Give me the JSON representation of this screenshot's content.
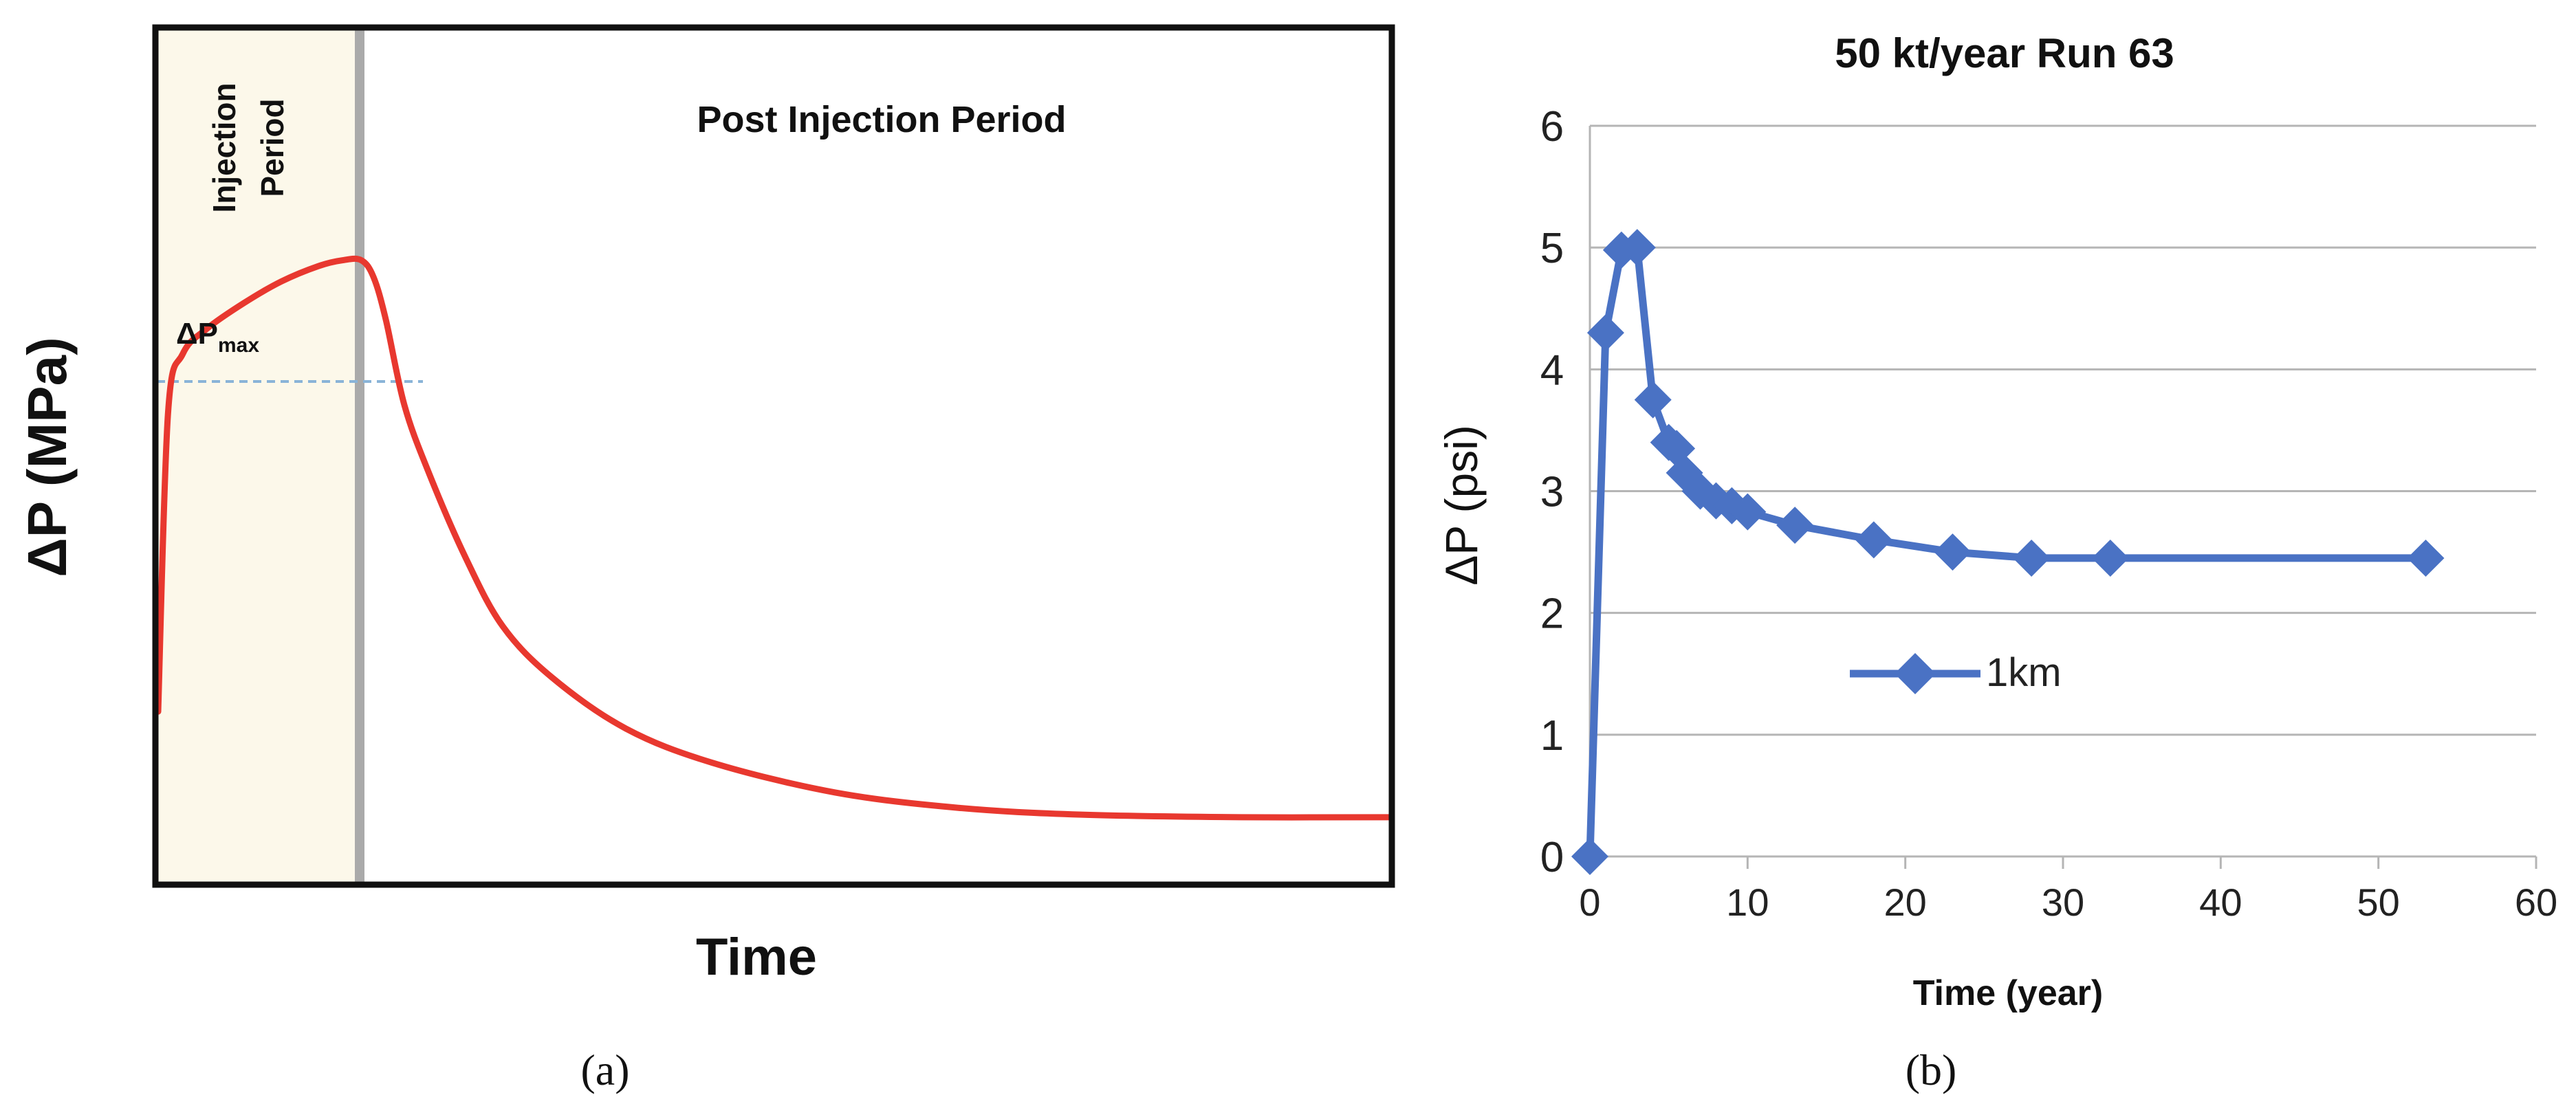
{
  "panel_a": {
    "caption": "(a)",
    "chart_data": {
      "type": "line",
      "title": "",
      "xlabel": "Time",
      "ylabel": "ΔP (MPa)",
      "shaded_region_label": [
        "Injection",
        "Period"
      ],
      "post_region_label": "Post Injection Period",
      "max_label": "ΔP",
      "max_label_subscript": "max",
      "x_range": [
        0,
        100
      ],
      "y_range": [
        0,
        100
      ],
      "injection_end_x": 16,
      "dp_max_y": 73,
      "curve": [
        [
          0,
          20
        ],
        [
          0.8,
          55
        ],
        [
          2,
          62
        ],
        [
          4,
          65
        ],
        [
          7,
          68
        ],
        [
          10,
          70.5
        ],
        [
          13,
          72.3
        ],
        [
          15,
          73
        ],
        [
          16.5,
          73
        ],
        [
          17.5,
          71
        ],
        [
          18.5,
          66
        ],
        [
          20,
          56
        ],
        [
          22,
          48
        ],
        [
          25,
          38
        ],
        [
          28,
          30
        ],
        [
          32,
          24
        ],
        [
          38,
          18
        ],
        [
          45,
          14
        ],
        [
          55,
          10.5
        ],
        [
          65,
          8.7
        ],
        [
          75,
          7.9
        ],
        [
          88,
          7.6
        ],
        [
          100,
          7.6
        ]
      ],
      "line_color": "#e8382f",
      "region_color": "#fcf8ea",
      "divider_color": "#aaaaaa",
      "max_line_color": "#8ab4d8"
    }
  },
  "panel_b": {
    "caption": "(b)",
    "chart_data": {
      "type": "line",
      "title": "50 kt/year Run 63",
      "xlabel": "Time (year)",
      "ylabel": "ΔP (psi)",
      "xlim": [
        0,
        60
      ],
      "ylim": [
        0,
        6
      ],
      "x_ticks": [
        0,
        10,
        20,
        30,
        40,
        50,
        60
      ],
      "y_ticks": [
        0,
        1,
        2,
        3,
        4,
        5,
        6
      ],
      "grid": true,
      "legend_position": "center-left",
      "series": [
        {
          "name": "1km",
          "color": "#4a72c4",
          "marker": "diamond",
          "x": [
            0,
            1,
            2,
            3,
            4,
            5,
            5.5,
            6,
            7,
            8,
            9,
            10,
            13,
            18,
            23,
            28,
            33,
            53
          ],
          "y": [
            0,
            4.3,
            4.98,
            5.0,
            3.75,
            3.4,
            3.35,
            3.15,
            3.0,
            2.92,
            2.88,
            2.83,
            2.72,
            2.6,
            2.5,
            2.45,
            2.45,
            2.45
          ]
        }
      ]
    }
  }
}
